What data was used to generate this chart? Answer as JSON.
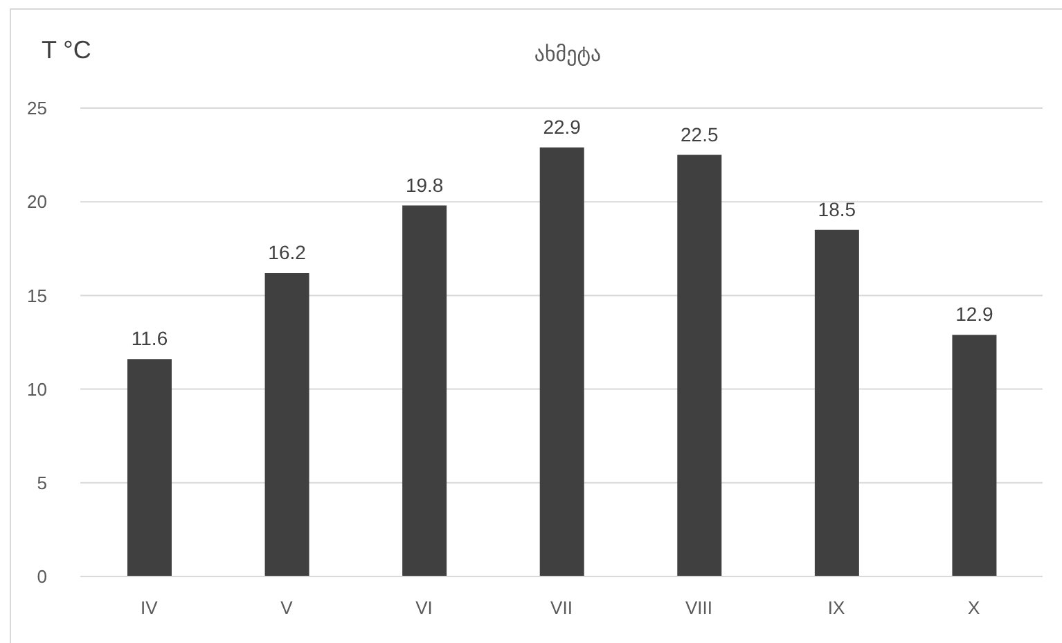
{
  "chart_data": {
    "type": "bar",
    "title": "ახმეტა",
    "ylabel": "T °C",
    "categories": [
      "IV",
      "V",
      "VI",
      "VII",
      "VIII",
      "IX",
      "X"
    ],
    "values": [
      11.6,
      16.2,
      19.8,
      22.9,
      22.5,
      18.5,
      12.9
    ],
    "color": "#404040",
    "ylim": [
      0,
      25
    ],
    "yticks": [
      0,
      5,
      10,
      15,
      20,
      25
    ],
    "grid": "y",
    "data_labels": true
  }
}
